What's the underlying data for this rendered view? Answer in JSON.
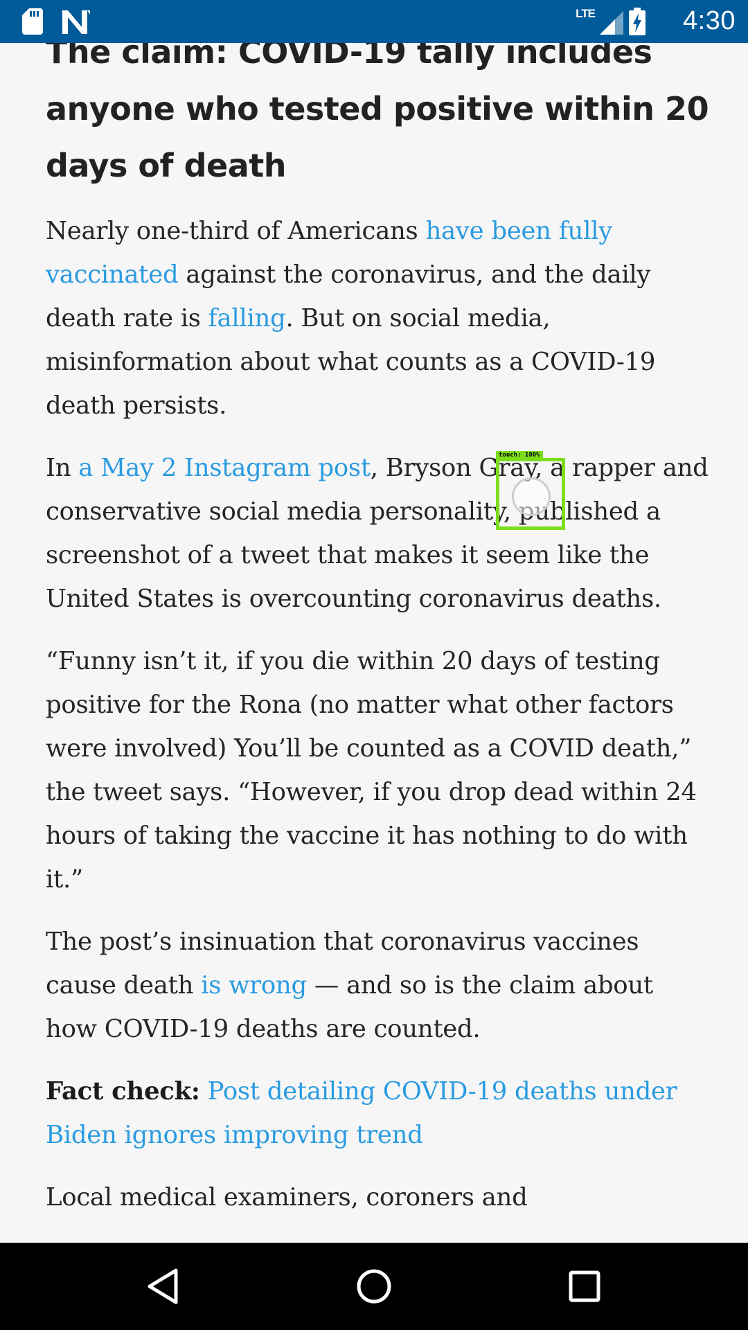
{
  "status_bar": {
    "network_label": "LTE",
    "time": "4:30",
    "icons": [
      "sd-card-icon",
      "n-notification-icon",
      "signal-icon",
      "battery-charging-icon"
    ],
    "background_color": "#005b9a"
  },
  "article": {
    "headline": "The claim: COVID-19 tally includes anyone who tested positive within 20 days of death",
    "p1": {
      "t1": "Nearly one-third of Americans ",
      "link1": "have been fully vaccinated",
      "t2": " against the coronavirus, and the daily death rate is ",
      "link2": "falling",
      "t3": ". But on social media, misinformation about what counts as a COVID-19 death persists."
    },
    "p2": {
      "t1": "In ",
      "link1": "a May 2 Instagram post",
      "t2": ", Bryson Gray, a rapper and conservative social media personality, published a screenshot of a tweet that makes it seem like the United States is overcounting coronavirus deaths."
    },
    "p3": {
      "text": "“Funny isn’t it, if you die within 20 days of testing positive for the Rona (no matter what other factors were involved) You’ll be counted as a COVID death,” the tweet says. “However, if you drop dead within 24 hours of taking the vaccine it has nothing to do with it.”"
    },
    "p4": {
      "t1": "The post’s insinuation that coronavirus vaccines cause death ",
      "link1": "is wrong",
      "t2": " — and so is the claim about how COVID-19 deaths are counted."
    },
    "p5": {
      "label": "Fact check:",
      "link1": "Post detailing COVID-19 deaths under Biden ignores improving trend"
    },
    "p6": {
      "text": "Local medical examiners, coroners and"
    },
    "link_color": "#2a9be0"
  },
  "touch_overlay": {
    "label": "touch: 100%",
    "color": "#7ddd1c"
  },
  "nav_bar": {
    "icons": [
      "back-icon",
      "home-icon",
      "recents-icon"
    ]
  }
}
